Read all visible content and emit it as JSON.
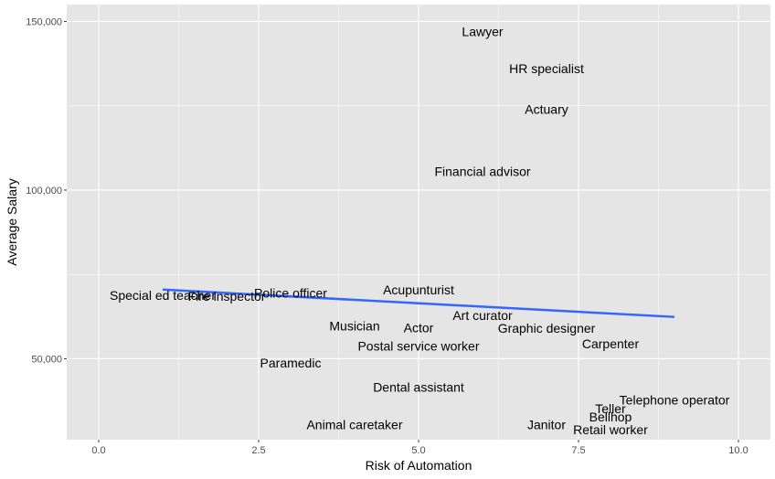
{
  "chart_data": {
    "type": "scatter",
    "title": "",
    "xlabel": "Risk of Automation",
    "ylabel": "Average Salary",
    "xlim": [
      -0.5,
      10.5
    ],
    "ylim": [
      26000,
      155000
    ],
    "x_ticks": [
      0,
      2.5,
      5,
      7.5,
      10
    ],
    "x_tick_labels": [
      "0.0",
      "2.5",
      "5.0",
      "7.5",
      "10.0"
    ],
    "y_ticks": [
      50000,
      100000,
      150000
    ],
    "y_tick_labels": [
      "50,000",
      "100,000",
      "150,000"
    ],
    "grid": true,
    "background": "#e5e5e5",
    "grid_color": "#ffffff",
    "trend_color": "#3366ff",
    "points": [
      {
        "label": "Lawyer",
        "x": 6.0,
        "y": 147000
      },
      {
        "label": "HR specialist",
        "x": 7.0,
        "y": 136000
      },
      {
        "label": "Actuary",
        "x": 7.0,
        "y": 124000
      },
      {
        "label": "Financial advisor",
        "x": 6.0,
        "y": 105500
      },
      {
        "label": "Acupunturist",
        "x": 5.0,
        "y": 70500
      },
      {
        "label": "Police officer",
        "x": 3.0,
        "y": 69500
      },
      {
        "label": "Special ed teacher",
        "x": 1.0,
        "y": 68800
      },
      {
        "label": "Fire inspector",
        "x": 2.0,
        "y": 68500
      },
      {
        "label": "Art curator",
        "x": 6.0,
        "y": 62800
      },
      {
        "label": "Musician",
        "x": 4.0,
        "y": 59800
      },
      {
        "label": "Actor",
        "x": 5.0,
        "y": 59200
      },
      {
        "label": "Graphic designer",
        "x": 7.0,
        "y": 59000
      },
      {
        "label": "Postal service worker",
        "x": 5.0,
        "y": 53800
      },
      {
        "label": "Carpenter",
        "x": 8.0,
        "y": 54500
      },
      {
        "label": "Paramedic",
        "x": 3.0,
        "y": 48700
      },
      {
        "label": "Dental assistant",
        "x": 5.0,
        "y": 41600
      },
      {
        "label": "Telephone operator",
        "x": 9.0,
        "y": 37800
      },
      {
        "label": "Teller",
        "x": 8.0,
        "y": 35200
      },
      {
        "label": "Bellhop",
        "x": 8.0,
        "y": 32800
      },
      {
        "label": "Animal caretaker",
        "x": 4.0,
        "y": 30500
      },
      {
        "label": "Janitor",
        "x": 7.0,
        "y": 30500
      },
      {
        "label": "Retail worker",
        "x": 8.0,
        "y": 29000
      }
    ],
    "trend_line": {
      "x": [
        1,
        9
      ],
      "y": [
        70500,
        62400
      ]
    }
  }
}
